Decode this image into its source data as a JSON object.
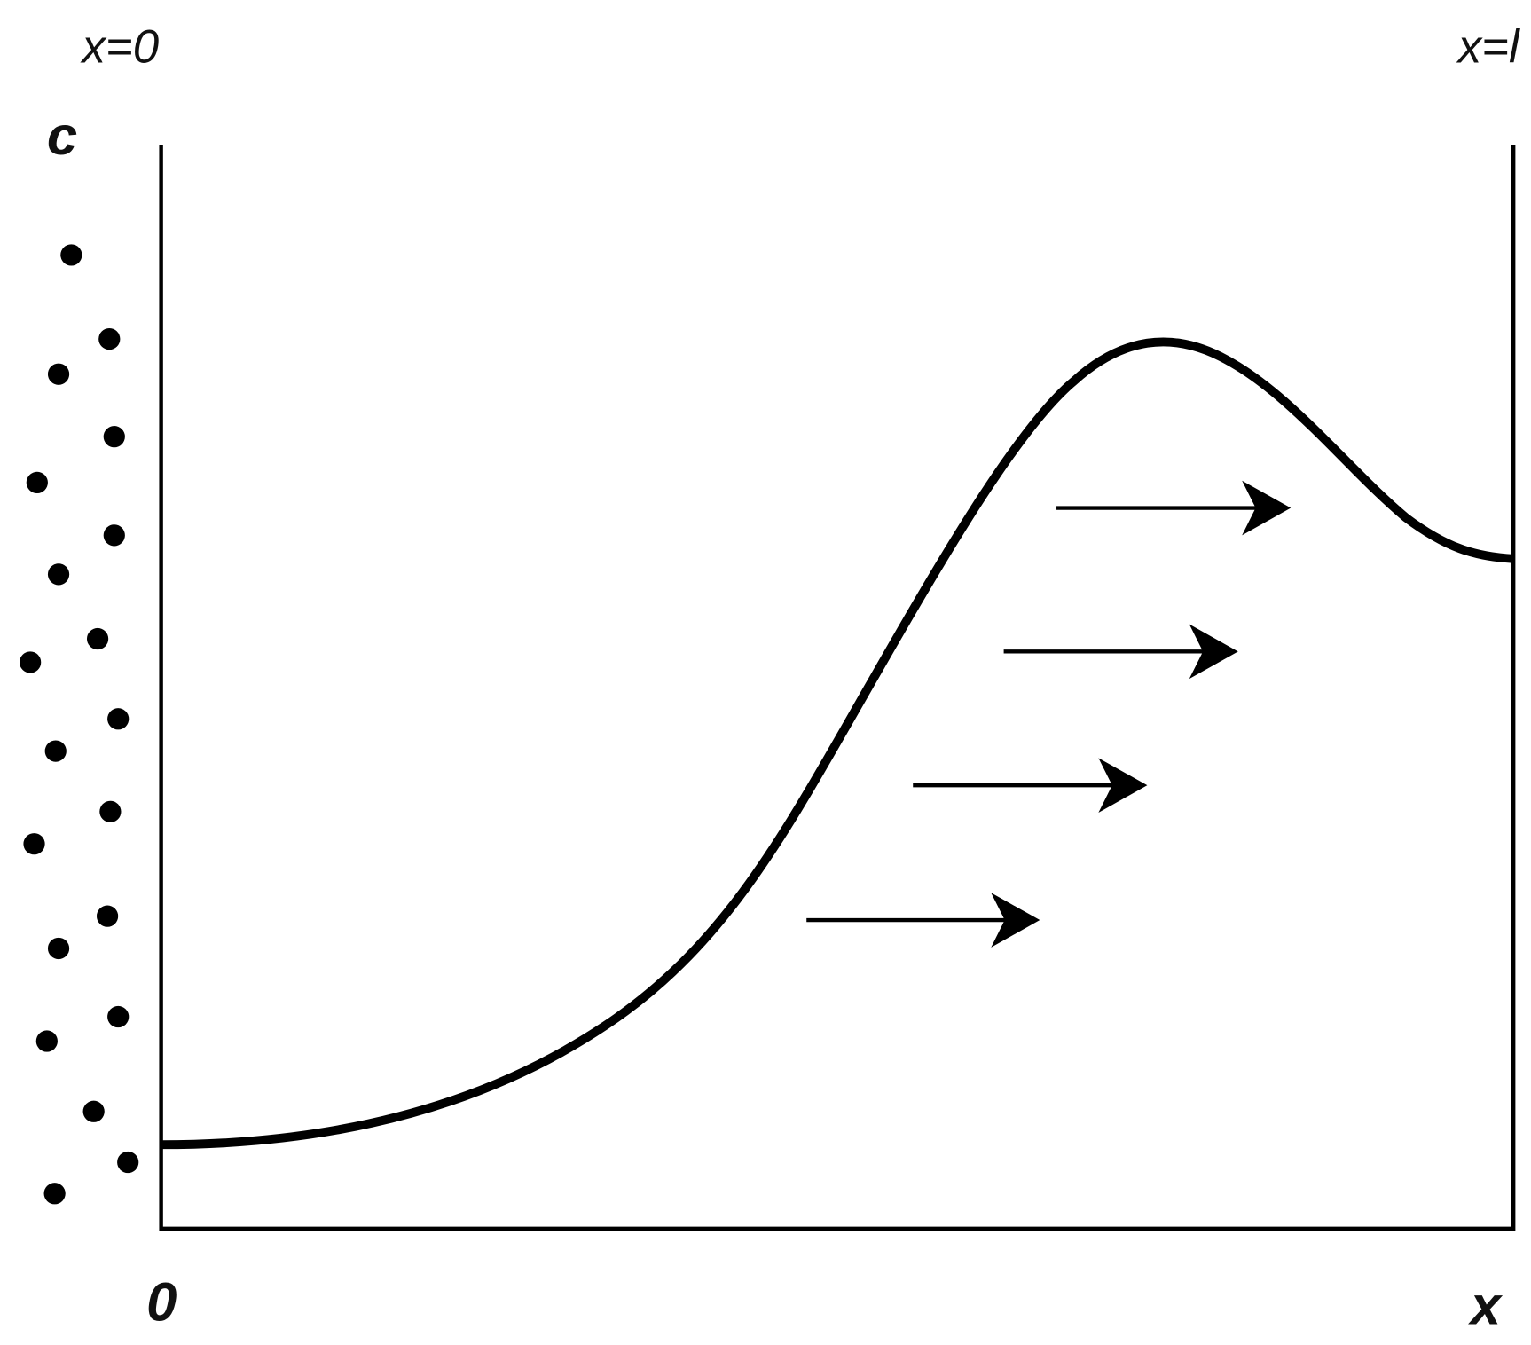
{
  "labels": {
    "left_boundary": "x=0",
    "right_boundary": "x=l",
    "y_axis": "c",
    "origin": "0",
    "x_axis": "x"
  }
}
